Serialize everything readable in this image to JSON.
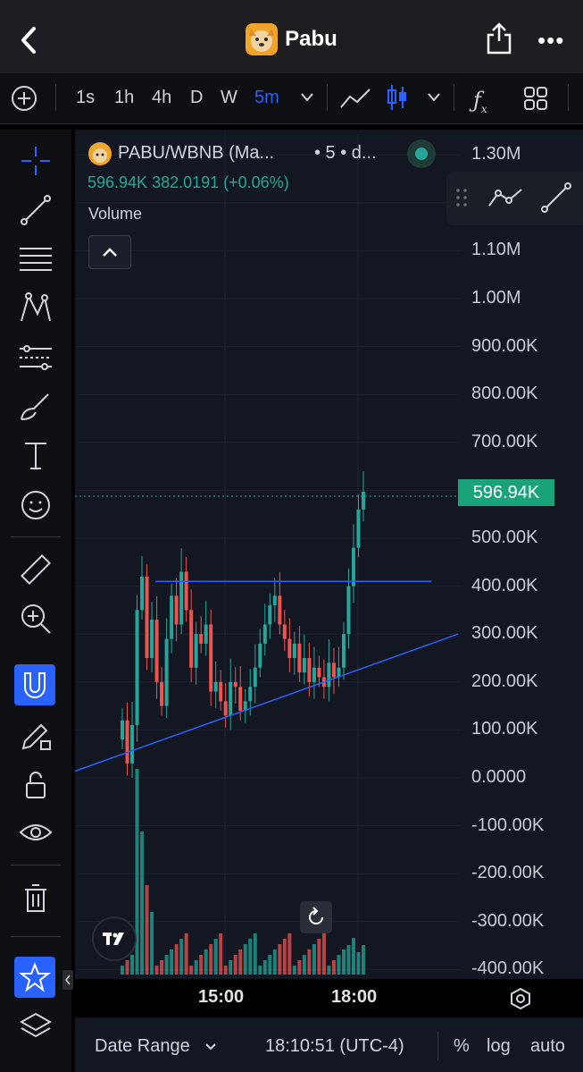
{
  "header": {
    "title": "Pabu",
    "back_icon": "chevron-left-icon",
    "share_icon": "share-icon",
    "more_label": "•••"
  },
  "toolbar": {
    "intervals": [
      "1s",
      "1h",
      "4h",
      "D",
      "W"
    ],
    "active_interval": "5m"
  },
  "symbol": {
    "name": "PABU/WBNB (Ma...",
    "interval_text": "• 5 • d...",
    "price": "596.94K",
    "change": "382.0191 (+0.06%)",
    "status_color": "#26a69a"
  },
  "volume_label": "Volume",
  "last_price_tag": "596.94K",
  "colors": {
    "up": "#26a69a",
    "down": "#ef5350",
    "trendline": "#2962ff",
    "active_tool": "#2962ff"
  },
  "chart_data": {
    "type": "candlestick",
    "ylim": [
      -400000,
      1300000
    ],
    "ytick_labels": [
      "1.30M",
      "1.10M",
      "1.00M",
      "900.00K",
      "800.00K",
      "700.00K",
      "596.94K",
      "500.00K",
      "400.00K",
      "300.00K",
      "200.00K",
      "100.00K",
      "0.0000",
      "-100.00K",
      "-200.00K",
      "-300.00K",
      "-400.00K"
    ],
    "xtick_labels": [
      "15:00",
      "18:00"
    ],
    "horizontal_line": 410000,
    "trendline": {
      "from": [
        0,
        20000
      ],
      "to": [
        1,
        290000
      ]
    },
    "series": [
      {
        "values": [
          120000,
          30000,
          110000,
          350000,
          420000,
          250000,
          330000,
          200000,
          150000,
          290000,
          380000,
          320000,
          430000,
          350000,
          230000,
          300000,
          280000,
          320000,
          180000,
          200000,
          160000,
          130000,
          200000,
          190000,
          140000,
          160000,
          190000,
          230000,
          280000,
          320000,
          360000,
          380000,
          320000,
          290000,
          250000,
          280000,
          220000,
          250000,
          200000,
          230000,
          210000,
          190000,
          240000,
          210000,
          230000,
          300000,
          400000,
          480000,
          560000,
          596940
        ]
      }
    ]
  },
  "axis_labels": {
    "x1": "15:00",
    "x2": "18:00"
  },
  "bottom": {
    "date_range": "Date Range",
    "time": "18:10:51 (UTC-4)",
    "percent": "%",
    "log": "log",
    "auto": "auto"
  }
}
